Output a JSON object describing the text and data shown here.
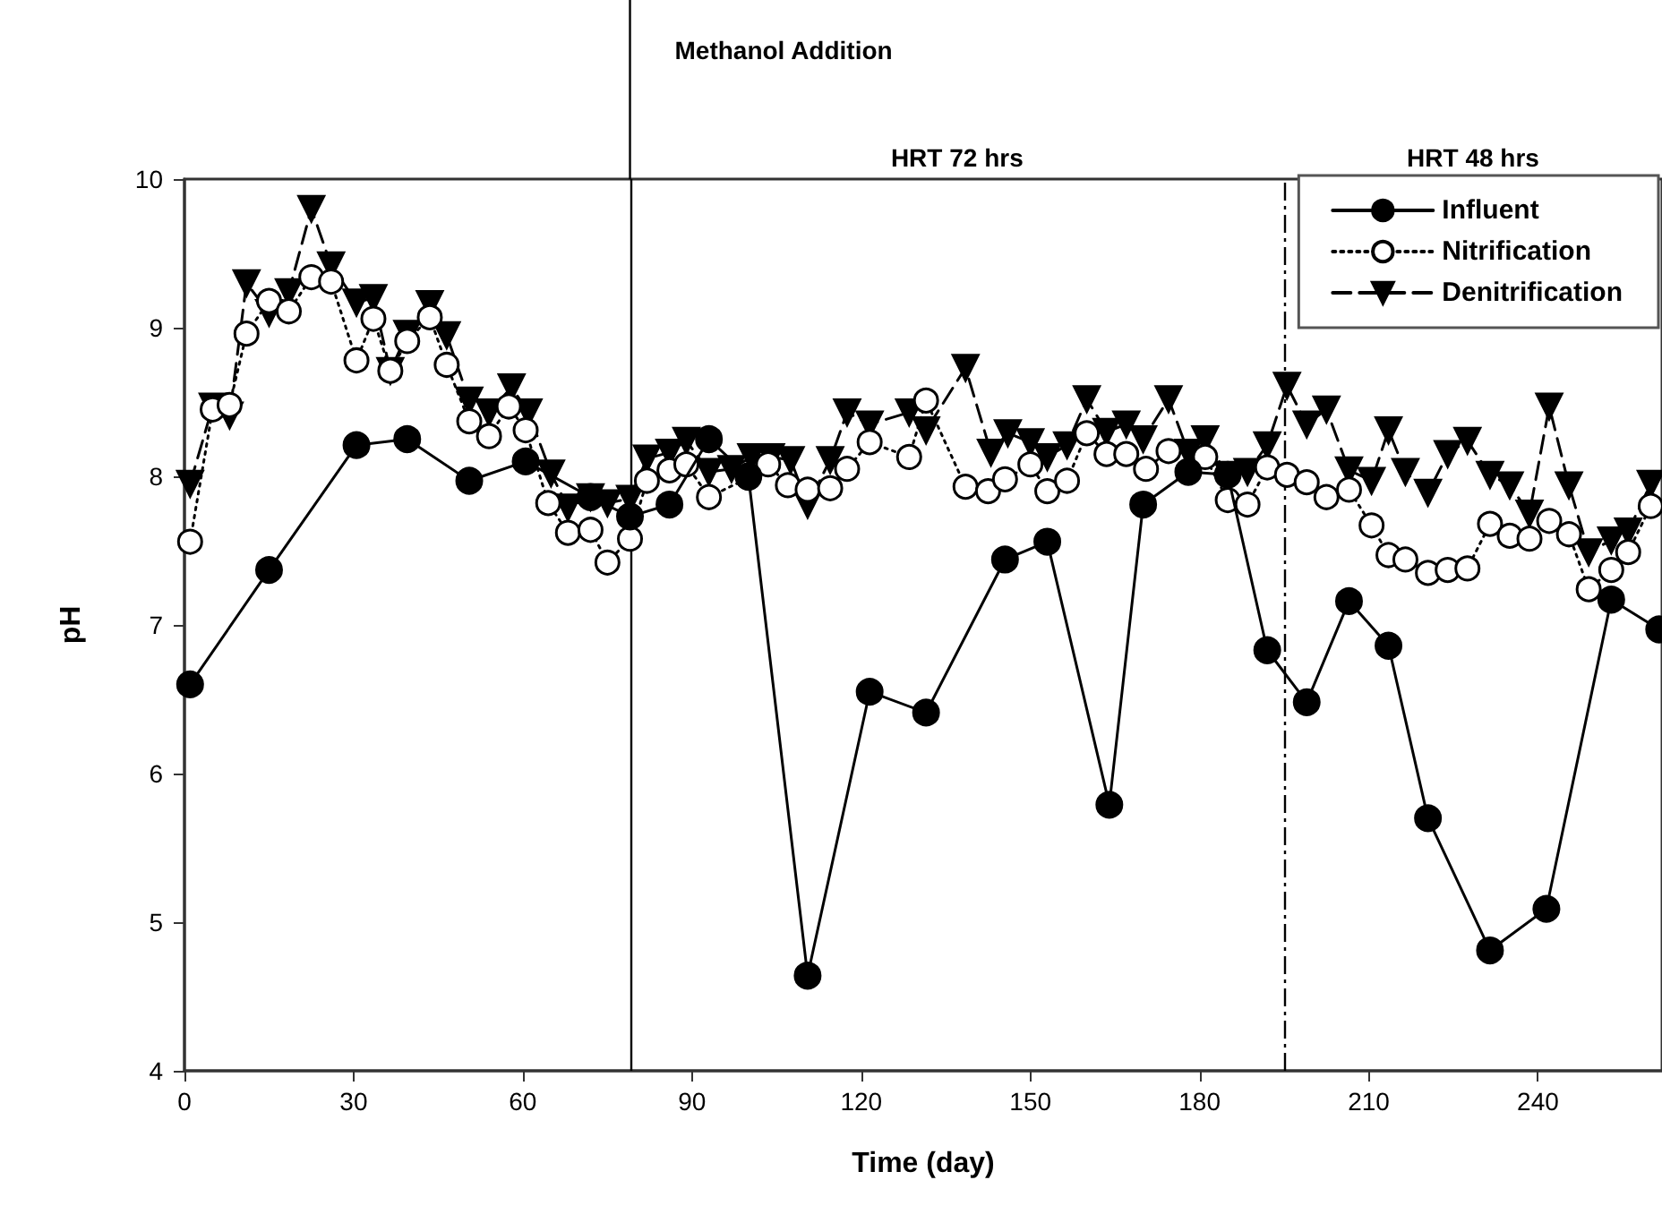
{
  "chart_data": {
    "type": "line",
    "xlabel": "Time (day)",
    "ylabel": "pH",
    "xlim": [
      0,
      262
    ],
    "xticks": [
      0,
      30,
      60,
      90,
      120,
      150,
      180,
      210,
      240
    ],
    "ylim": [
      4,
      10
    ],
    "yticks": [
      4,
      5,
      6,
      7,
      8,
      9,
      10
    ],
    "grid": false,
    "legend": "top right",
    "ref_lines": [
      {
        "axis": "x",
        "value": 79,
        "line_style": "solid",
        "color": "#000000"
      },
      {
        "axis": "x",
        "value": 195,
        "line_style": "dashdot",
        "color": "#000000"
      }
    ],
    "annotations": [
      "Methanol Addition",
      "HRT 72 hrs",
      "HRT 48 hrs"
    ],
    "series": [
      {
        "name": "Influent",
        "color": "#000000",
        "marker": "circle",
        "line_style": "solid",
        "x": [
          1,
          15,
          30.5,
          39.5,
          50.5,
          60.5,
          72,
          79,
          86,
          93,
          100,
          110.5,
          121.5,
          131.5,
          145.5,
          153,
          164,
          170,
          178,
          185,
          192,
          199,
          206.5,
          213.5,
          220.5,
          231.5,
          241.5,
          253,
          261.5
        ],
        "values": [
          6.6,
          7.37,
          8.21,
          8.25,
          7.97,
          8.1,
          7.86,
          7.73,
          7.81,
          8.25,
          8.0,
          4.64,
          6.55,
          6.41,
          7.44,
          7.56,
          5.79,
          7.81,
          8.03,
          8.01,
          6.83,
          6.48,
          7.16,
          6.86,
          5.7,
          4.81,
          5.09,
          7.17,
          6.97
        ]
      },
      {
        "name": "Nitrification",
        "color": "#000000",
        "marker": "hollow-circle",
        "line_style": "dotted",
        "x": [
          1,
          5,
          8,
          11,
          15,
          18.5,
          22.5,
          26,
          30.5,
          33.5,
          36.5,
          39.5,
          43.5,
          46.5,
          50.5,
          54,
          57.5,
          60.5,
          64.5,
          68,
          72,
          75,
          79,
          82,
          86,
          89,
          93,
          100,
          103.5,
          107,
          110.5,
          114.5,
          117.5,
          121.5,
          128.5,
          131.5,
          138.5,
          142.5,
          145.5,
          150,
          153,
          156.5,
          160,
          163.5,
          167,
          170.5,
          174.5,
          181,
          185,
          188.5,
          192,
          195.5,
          199,
          202.5,
          206.5,
          210.5,
          213.5,
          216.5,
          220.5,
          224,
          227.5,
          231.5,
          235,
          238.5,
          242,
          245.5,
          249,
          253,
          256,
          260
        ],
        "values": [
          7.56,
          8.45,
          8.48,
          8.96,
          9.18,
          9.11,
          9.34,
          9.31,
          8.78,
          9.06,
          8.71,
          8.91,
          9.07,
          8.75,
          8.37,
          8.27,
          8.47,
          8.31,
          7.82,
          7.62,
          7.64,
          7.42,
          7.58,
          7.97,
          8.04,
          8.08,
          7.86,
          7.99,
          8.08,
          7.94,
          7.91,
          7.92,
          8.05,
          8.23,
          8.13,
          8.51,
          7.93,
          7.9,
          7.98,
          8.08,
          7.9,
          7.97,
          8.29,
          8.15,
          8.15,
          8.05,
          8.17,
          8.13,
          7.84,
          7.81,
          8.06,
          8.01,
          7.96,
          7.86,
          7.91,
          7.67,
          7.47,
          7.44,
          7.35,
          7.37,
          7.38,
          7.68,
          7.6,
          7.58,
          7.7,
          7.61,
          7.24,
          7.37,
          7.49,
          7.8
        ]
      },
      {
        "name": "Denitrification",
        "color": "#000000",
        "marker": "triangle-down",
        "line_style": "dashed",
        "x": [
          1,
          5,
          8,
          11,
          15,
          18.5,
          22.5,
          26,
          30.5,
          33.5,
          36.5,
          39.5,
          43.5,
          46.5,
          50.5,
          54,
          58,
          61,
          65,
          68,
          72,
          75,
          79,
          82,
          86,
          89,
          93,
          97,
          100.5,
          104,
          107.5,
          110.5,
          114.5,
          117.5,
          121.5,
          128.5,
          131.5,
          138.5,
          143,
          146,
          150,
          153,
          156.5,
          160,
          163.5,
          167,
          170,
          174.5,
          178,
          181,
          185,
          188.5,
          192,
          195.5,
          199,
          202.5,
          206.5,
          210.5,
          213.5,
          216.5,
          220.5,
          224,
          227.5,
          231.5,
          235,
          238.5,
          242,
          245.5,
          249,
          253,
          256,
          260
        ],
        "values": [
          7.95,
          8.47,
          8.41,
          9.3,
          9.1,
          9.24,
          9.8,
          9.42,
          9.17,
          9.2,
          8.71,
          8.96,
          9.16,
          8.95,
          8.51,
          8.43,
          8.6,
          8.43,
          8.02,
          7.79,
          7.86,
          7.82,
          7.85,
          8.12,
          8.16,
          8.24,
          8.03,
          8.05,
          8.13,
          8.13,
          8.11,
          7.81,
          8.11,
          8.43,
          8.35,
          8.43,
          8.31,
          8.73,
          8.16,
          8.29,
          8.23,
          8.13,
          8.21,
          8.52,
          8.3,
          8.35,
          8.25,
          8.52,
          8.16,
          8.25,
          8.01,
          8.03,
          8.21,
          8.61,
          8.35,
          8.45,
          8.04,
          7.97,
          8.31,
          8.03,
          7.89,
          8.15,
          8.24,
          8.01,
          7.94,
          7.75,
          8.47,
          7.94,
          7.49,
          7.57,
          7.63,
          7.95
        ]
      }
    ]
  }
}
